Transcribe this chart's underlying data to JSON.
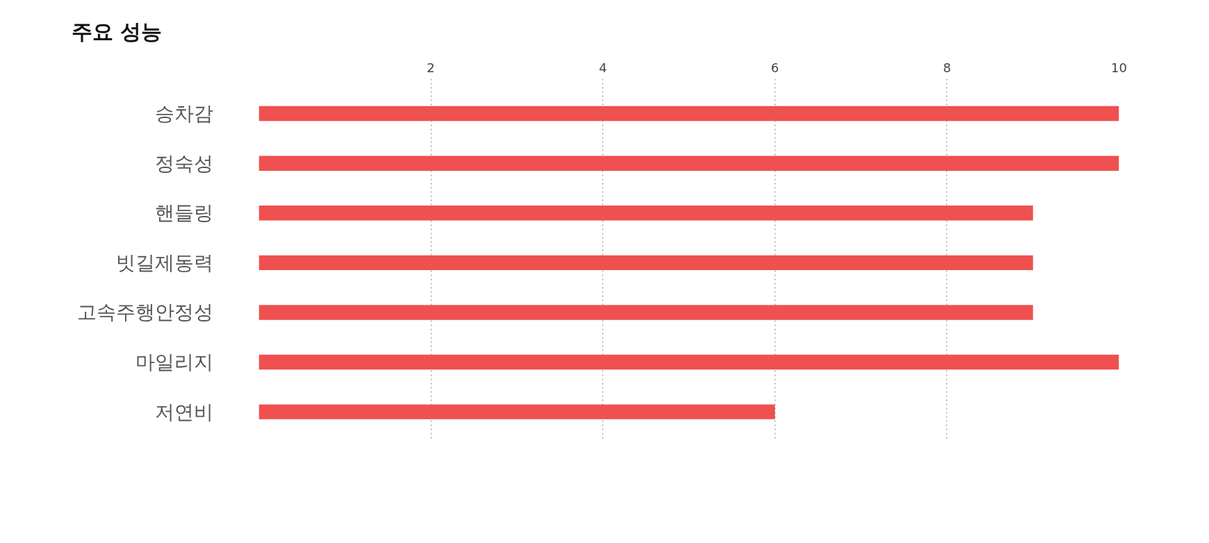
{
  "chart_data": {
    "type": "bar",
    "orientation": "horizontal",
    "title": "주요 성능",
    "categories": [
      "승차감",
      "정숙성",
      "핸들링",
      "빗길제동력",
      "고속주행안정성",
      "마일리지",
      "저연비"
    ],
    "values": [
      10,
      10,
      9,
      9,
      9,
      10,
      6
    ],
    "color": "#ef5050",
    "xlim": [
      0,
      10
    ],
    "xticks": [
      2,
      4,
      6,
      8,
      10
    ],
    "grid": "x"
  }
}
